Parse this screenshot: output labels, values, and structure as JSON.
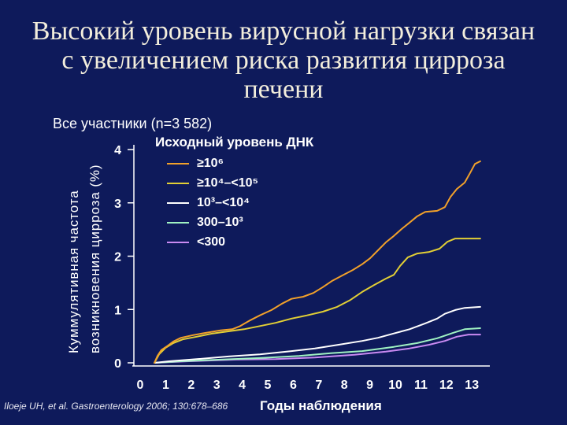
{
  "slide": {
    "title_lines": [
      "Высокий уровень вирусной нагрузки связан",
      "с увеличением риска развития цирроза",
      "печени"
    ],
    "citation": "Iloeje UH, et al. Gastroenterology 2006; 130:678–686",
    "background_color": "#0e1a5b",
    "title_color": "#f3eedc",
    "text_color": "#ffffff"
  },
  "chart_data": {
    "type": "line",
    "subtitle": "Все участники (n=3 582)",
    "xlabel": "Годы наблюдения",
    "ylabel_lines": [
      "Куммулятивная частота",
      "возникновения цирроза (%)"
    ],
    "xlim": [
      0,
      13.5
    ],
    "ylim": [
      0,
      4
    ],
    "xticks": [
      0,
      1,
      2,
      3,
      4,
      5,
      6,
      7,
      8,
      9,
      10,
      11,
      12,
      13
    ],
    "yticks": [
      0,
      1,
      2,
      3,
      4
    ],
    "grid": false,
    "legend": {
      "title": "Исходный уровень ДНК",
      "position": "top-left"
    },
    "series": [
      {
        "name": "≥10⁶",
        "color": "#f2a12a",
        "x": [
          0.56,
          0.68,
          0.83,
          1.05,
          1.3,
          1.6,
          2.07,
          2.53,
          3.15,
          3.61,
          3.92,
          4.32,
          4.69,
          5.15,
          5.56,
          5.93,
          6.39,
          6.79,
          7.16,
          7.53,
          7.93,
          8.33,
          8.7,
          9.01,
          9.32,
          9.63,
          9.94,
          10.25,
          10.56,
          10.86,
          11.17,
          11.64,
          11.94,
          12.16,
          12.41,
          12.72,
          12.93,
          13.12,
          13.33
        ],
        "y": [
          0,
          0.13,
          0.24,
          0.31,
          0.4,
          0.47,
          0.52,
          0.56,
          0.61,
          0.63,
          0.69,
          0.8,
          0.89,
          0.99,
          1.11,
          1.2,
          1.24,
          1.31,
          1.42,
          1.54,
          1.64,
          1.74,
          1.85,
          1.96,
          2.11,
          2.26,
          2.38,
          2.51,
          2.63,
          2.75,
          2.83,
          2.85,
          2.92,
          3.11,
          3.26,
          3.38,
          3.56,
          3.73,
          3.78
        ]
      },
      {
        "name": "≥10⁴–<10⁵",
        "color": "#e2cf35",
        "x": [
          0.56,
          0.74,
          0.99,
          1.3,
          1.67,
          2.22,
          2.84,
          3.46,
          4.07,
          4.69,
          5.31,
          5.93,
          6.54,
          7.16,
          7.72,
          8.24,
          8.7,
          9.17,
          9.63,
          9.94,
          10.19,
          10.49,
          10.86,
          11.33,
          11.73,
          12.04,
          12.35,
          13.33
        ],
        "y": [
          0,
          0.16,
          0.28,
          0.37,
          0.44,
          0.49,
          0.55,
          0.59,
          0.63,
          0.69,
          0.75,
          0.83,
          0.89,
          0.96,
          1.05,
          1.18,
          1.33,
          1.46,
          1.58,
          1.65,
          1.82,
          1.98,
          2.05,
          2.08,
          2.14,
          2.27,
          2.33,
          2.33
        ]
      },
      {
        "name": "10³–<10⁴",
        "color": "#ffffff",
        "x": [
          0.56,
          1.14,
          2.22,
          3.46,
          4.69,
          5.93,
          6.85,
          7.78,
          8.7,
          9.32,
          9.94,
          10.56,
          11.17,
          11.64,
          11.94,
          12.35,
          12.72,
          13.33
        ],
        "y": [
          0,
          0.03,
          0.07,
          0.12,
          0.16,
          0.22,
          0.27,
          0.34,
          0.41,
          0.47,
          0.55,
          0.63,
          0.74,
          0.83,
          0.92,
          0.99,
          1.03,
          1.05
        ]
      },
      {
        "name": "300–10³",
        "color": "#9ff2c2",
        "x": [
          0.56,
          1.6,
          3.15,
          4.69,
          6.23,
          7.47,
          8.7,
          9.94,
          10.86,
          11.64,
          12.25,
          12.72,
          13.33
        ],
        "y": [
          0,
          0.03,
          0.06,
          0.09,
          0.13,
          0.18,
          0.22,
          0.3,
          0.37,
          0.46,
          0.56,
          0.63,
          0.65
        ]
      },
      {
        "name": "<300",
        "color": "#c98af2",
        "x": [
          0.56,
          1.91,
          3.77,
          5.31,
          6.85,
          8.4,
          9.63,
          10.56,
          11.33,
          11.94,
          12.41,
          12.87,
          13.33
        ],
        "y": [
          0,
          0.03,
          0.06,
          0.07,
          0.1,
          0.15,
          0.21,
          0.27,
          0.34,
          0.41,
          0.49,
          0.53,
          0.53
        ]
      }
    ]
  }
}
